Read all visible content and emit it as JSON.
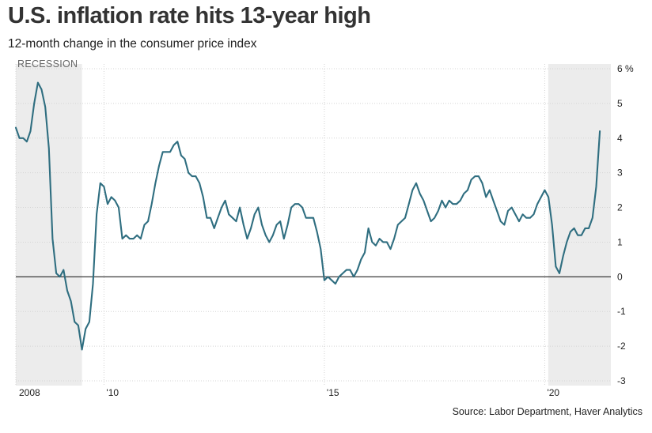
{
  "chart_data": {
    "type": "line",
    "title": "U.S. inflation rate hits 13-year high",
    "subtitle": "12-month change in the consumer price index",
    "source": "Source: Labor Department, Haver Analytics",
    "recession_label": "RECESSION",
    "recessions": [
      [
        2008.0,
        2009.5
      ],
      [
        2020.08,
        2021.5
      ]
    ],
    "xlim": [
      2008.0,
      2021.5
    ],
    "ylim": [
      -3,
      6
    ],
    "yticks": [
      -3,
      -2,
      -1,
      0,
      1,
      2,
      3,
      4,
      5,
      6
    ],
    "ytick_labels": [
      "-3",
      "-2",
      "-1",
      "0",
      "1",
      "2",
      "3",
      "4",
      "5",
      "6 %"
    ],
    "xticks": [
      2008,
      2010,
      2015,
      2020
    ],
    "xtick_labels": [
      "2008",
      "'10",
      "'15",
      "'20"
    ],
    "grid": true,
    "line_color": "#2f6e80",
    "recession_color": "#ececec",
    "x": [
      2008.0,
      2008.083,
      2008.167,
      2008.25,
      2008.333,
      2008.417,
      2008.5,
      2008.583,
      2008.667,
      2008.75,
      2008.833,
      2008.917,
      2009.0,
      2009.083,
      2009.167,
      2009.25,
      2009.333,
      2009.417,
      2009.5,
      2009.583,
      2009.667,
      2009.75,
      2009.833,
      2009.917,
      2010.0,
      2010.083,
      2010.167,
      2010.25,
      2010.333,
      2010.417,
      2010.5,
      2010.583,
      2010.667,
      2010.75,
      2010.833,
      2010.917,
      2011.0,
      2011.083,
      2011.167,
      2011.25,
      2011.333,
      2011.417,
      2011.5,
      2011.583,
      2011.667,
      2011.75,
      2011.833,
      2011.917,
      2012.0,
      2012.083,
      2012.167,
      2012.25,
      2012.333,
      2012.417,
      2012.5,
      2012.583,
      2012.667,
      2012.75,
      2012.833,
      2012.917,
      2013.0,
      2013.083,
      2013.167,
      2013.25,
      2013.333,
      2013.417,
      2013.5,
      2013.583,
      2013.667,
      2013.75,
      2013.833,
      2013.917,
      2014.0,
      2014.083,
      2014.167,
      2014.25,
      2014.333,
      2014.417,
      2014.5,
      2014.583,
      2014.667,
      2014.75,
      2014.833,
      2014.917,
      2015.0,
      2015.083,
      2015.167,
      2015.25,
      2015.333,
      2015.417,
      2015.5,
      2015.583,
      2015.667,
      2015.75,
      2015.833,
      2015.917,
      2016.0,
      2016.083,
      2016.167,
      2016.25,
      2016.333,
      2016.417,
      2016.5,
      2016.583,
      2016.667,
      2016.75,
      2016.833,
      2016.917,
      2017.0,
      2017.083,
      2017.167,
      2017.25,
      2017.333,
      2017.417,
      2017.5,
      2017.583,
      2017.667,
      2017.75,
      2017.833,
      2017.917,
      2018.0,
      2018.083,
      2018.167,
      2018.25,
      2018.333,
      2018.417,
      2018.5,
      2018.583,
      2018.667,
      2018.75,
      2018.833,
      2018.917,
      2019.0,
      2019.083,
      2019.167,
      2019.25,
      2019.333,
      2019.417,
      2019.5,
      2019.583,
      2019.667,
      2019.75,
      2019.833,
      2019.917,
      2020.0,
      2020.083,
      2020.167,
      2020.25,
      2020.333,
      2020.417,
      2020.5,
      2020.583,
      2020.667,
      2020.75,
      2020.833,
      2020.917,
      2021.0,
      2021.083,
      2021.167,
      2021.25
    ],
    "y": [
      4.3,
      4.0,
      4.0,
      3.9,
      4.2,
      5.0,
      5.6,
      5.4,
      4.9,
      3.7,
      1.1,
      0.1,
      0.0,
      0.2,
      -0.4,
      -0.7,
      -1.3,
      -1.4,
      -2.1,
      -1.5,
      -1.3,
      -0.2,
      1.8,
      2.7,
      2.6,
      2.1,
      2.3,
      2.2,
      2.0,
      1.1,
      1.2,
      1.1,
      1.1,
      1.2,
      1.1,
      1.5,
      1.6,
      2.1,
      2.7,
      3.2,
      3.6,
      3.6,
      3.6,
      3.8,
      3.9,
      3.5,
      3.4,
      3.0,
      2.9,
      2.9,
      2.7,
      2.3,
      1.7,
      1.7,
      1.4,
      1.7,
      2.0,
      2.2,
      1.8,
      1.7,
      1.6,
      2.0,
      1.5,
      1.1,
      1.4,
      1.8,
      2.0,
      1.5,
      1.2,
      1.0,
      1.2,
      1.5,
      1.6,
      1.1,
      1.5,
      2.0,
      2.1,
      2.1,
      2.0,
      1.7,
      1.7,
      1.7,
      1.3,
      0.8,
      -0.1,
      0.0,
      -0.1,
      -0.2,
      0.0,
      0.1,
      0.2,
      0.2,
      0.0,
      0.2,
      0.5,
      0.7,
      1.4,
      1.0,
      0.9,
      1.1,
      1.0,
      1.0,
      0.8,
      1.1,
      1.5,
      1.6,
      1.7,
      2.1,
      2.5,
      2.7,
      2.4,
      2.2,
      1.9,
      1.6,
      1.7,
      1.9,
      2.2,
      2.0,
      2.2,
      2.1,
      2.1,
      2.2,
      2.4,
      2.5,
      2.8,
      2.9,
      2.9,
      2.7,
      2.3,
      2.5,
      2.2,
      1.9,
      1.6,
      1.5,
      1.9,
      2.0,
      1.8,
      1.6,
      1.8,
      1.7,
      1.7,
      1.8,
      2.1,
      2.3,
      2.5,
      2.3,
      1.5,
      0.3,
      0.1,
      0.6,
      1.0,
      1.3,
      1.4,
      1.2,
      1.2,
      1.4,
      1.4,
      1.7,
      2.6,
      4.2
    ]
  }
}
